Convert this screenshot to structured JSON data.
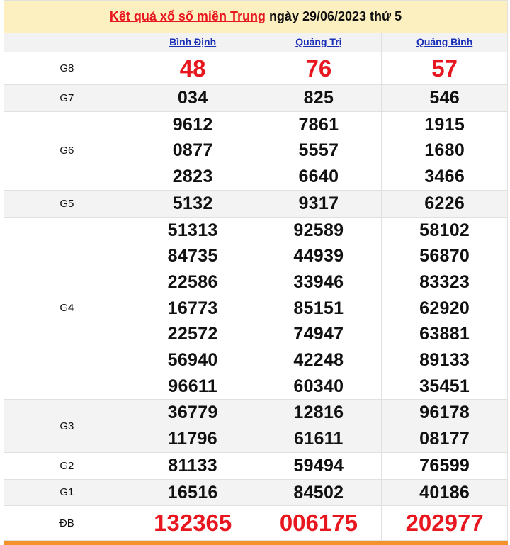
{
  "title": {
    "link": "Kết quả xổ số miền Trung",
    "rest": " ngày 29/06/2023 thứ 5"
  },
  "provinces": [
    "Bình Định",
    "Quảng Trị",
    "Quảng Bình"
  ],
  "rows": [
    {
      "label": "G8",
      "values": [
        [
          "48"
        ],
        [
          "76"
        ],
        [
          "57"
        ]
      ]
    },
    {
      "label": "G7",
      "values": [
        [
          "034"
        ],
        [
          "825"
        ],
        [
          "546"
        ]
      ]
    },
    {
      "label": "G6",
      "values": [
        [
          "9612",
          "0877",
          "2823"
        ],
        [
          "7861",
          "5557",
          "6640"
        ],
        [
          "1915",
          "1680",
          "3466"
        ]
      ]
    },
    {
      "label": "G5",
      "values": [
        [
          "5132"
        ],
        [
          "9317"
        ],
        [
          "6226"
        ]
      ]
    },
    {
      "label": "G4",
      "values": [
        [
          "51313",
          "84735",
          "22586",
          "16773",
          "22572",
          "56940",
          "96611"
        ],
        [
          "92589",
          "44939",
          "33946",
          "85151",
          "74947",
          "42248",
          "60340"
        ],
        [
          "58102",
          "56870",
          "83323",
          "62920",
          "63881",
          "89133",
          "35451"
        ]
      ]
    },
    {
      "label": "G3",
      "values": [
        [
          "36779",
          "11796"
        ],
        [
          "12816",
          "61611"
        ],
        [
          "96178",
          "08177"
        ]
      ]
    },
    {
      "label": "G2",
      "values": [
        [
          "81133"
        ],
        [
          "59494"
        ],
        [
          "76599"
        ]
      ]
    },
    {
      "label": "G1",
      "values": [
        [
          "16516"
        ],
        [
          "84502"
        ],
        [
          "40186"
        ]
      ]
    },
    {
      "label": "ĐB",
      "values": [
        [
          "132365"
        ],
        [
          "006175"
        ],
        [
          "202977"
        ]
      ]
    }
  ],
  "colors": {
    "accent": "#e8161e",
    "link": "#1a2fb5",
    "header_bg": "#fcf0c0",
    "bottom_bar": "#f5922a"
  }
}
